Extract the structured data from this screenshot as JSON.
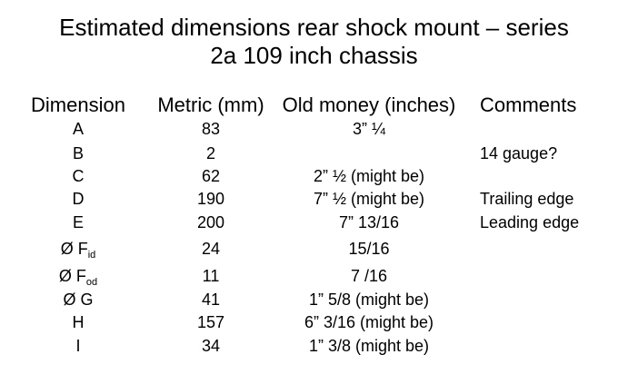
{
  "title": [
    "Estimated dimensions rear shock mount – series",
    "2a 109 inch chassis"
  ],
  "table": {
    "header": [
      "Dimension",
      "Metric (mm)",
      "Old money (inches)",
      "Comments"
    ],
    "rows": [
      [
        "A",
        "83",
        "3” ¼",
        null
      ],
      [
        "B",
        "2",
        null,
        "14 gauge?"
      ],
      [
        "C",
        "62",
        "2” ½ (might be)",
        null
      ],
      [
        "D",
        "190",
        "7” ½ (might be)",
        "Trailing edge"
      ],
      [
        "E",
        "200",
        "7” 13/16",
        "Leading edge"
      ],
      [
        {
          "main": "Ø F",
          "sub": "id"
        },
        "24",
        "15/16",
        null
      ],
      [
        {
          "main": "Ø F",
          "sub": "od"
        },
        "11",
        "7 /16",
        null
      ],
      [
        "Ø G",
        "41",
        "1” 5/8 (might be)",
        null
      ],
      [
        "H",
        "157",
        "6” 3/16 (might be)",
        null
      ],
      [
        "I",
        "34",
        "1” 3/8 (might be)",
        null
      ]
    ]
  }
}
